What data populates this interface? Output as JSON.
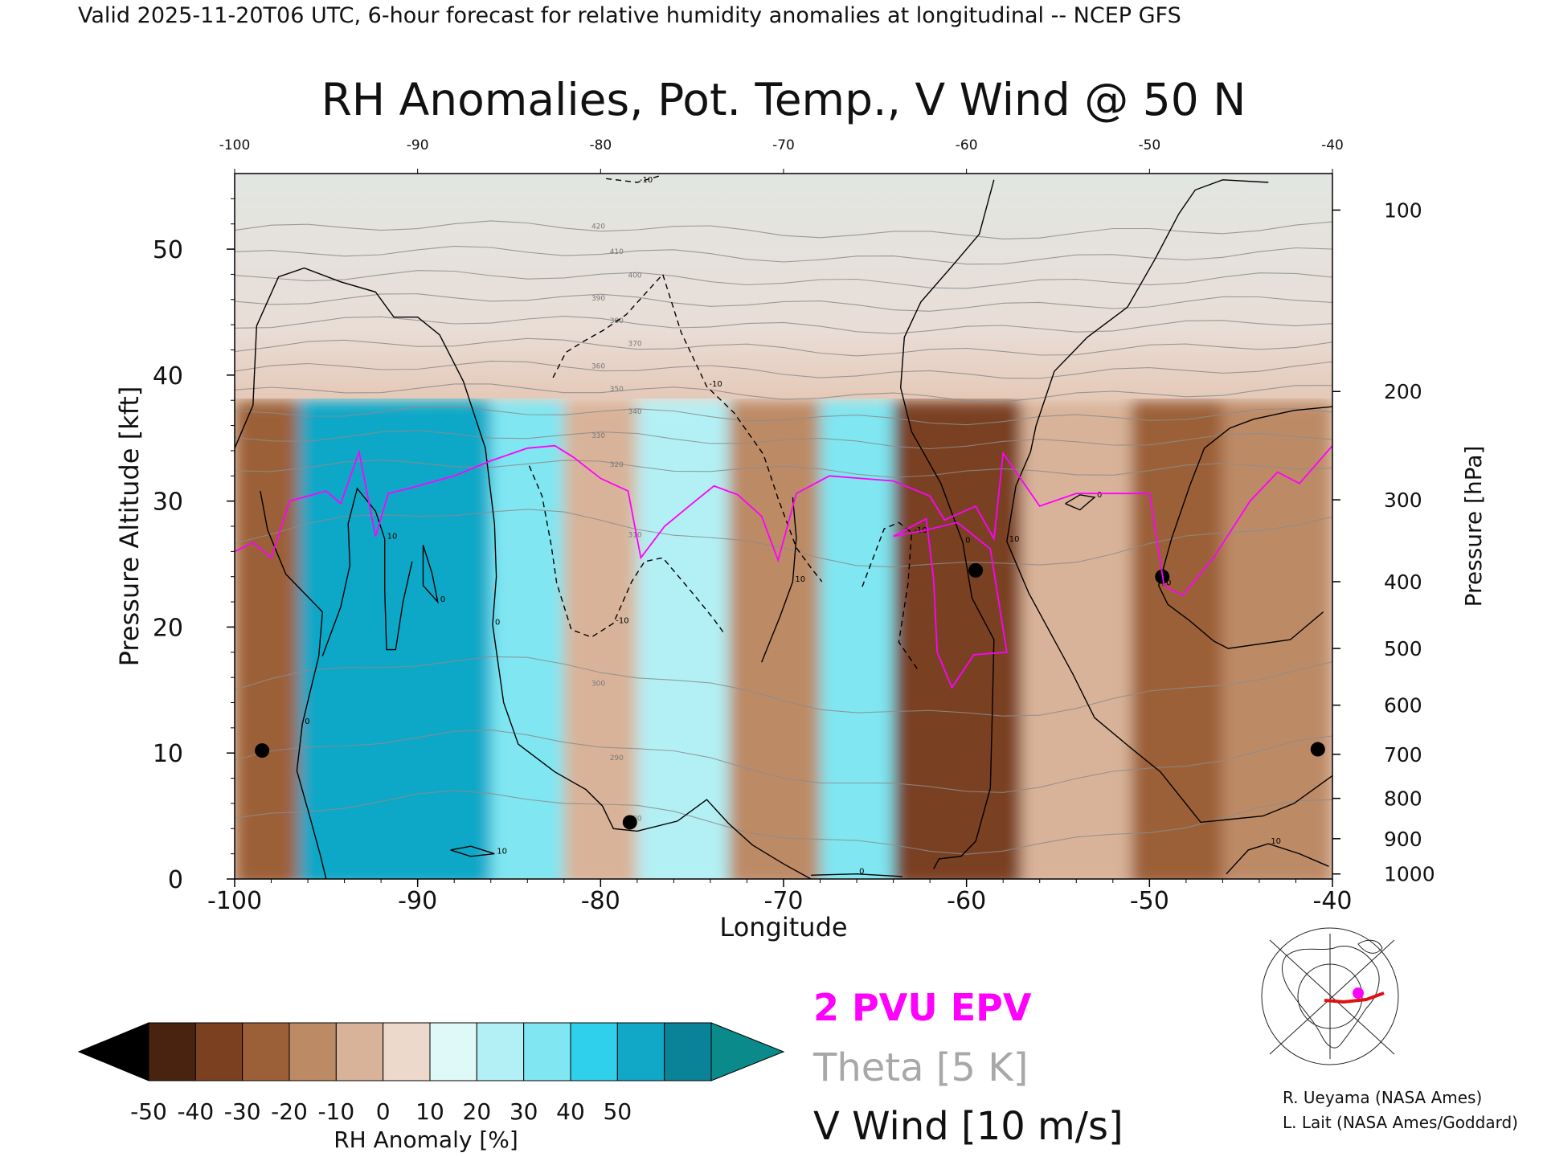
{
  "header": "Valid 2025-11-20T06 UTC, 6-hour forecast for relative humidity anomalies at longitudinal -- NCEP GFS",
  "chart_data": {
    "type": "heatmap",
    "title": "RH Anomalies, Pot. Temp., V Wind @ 50 N",
    "xlabel": "Longitude",
    "ylabel": "Pressure Altitude [kft]",
    "y2label": "Pressure [hPa]",
    "xlim": [
      -100,
      -40
    ],
    "ylim": [
      0,
      56
    ],
    "xticks": [
      "-100",
      "-90",
      "-80",
      "-70",
      "-60",
      "-50",
      "-40"
    ],
    "top_xticks": [
      "-100",
      "-90",
      "-80",
      "-70",
      "-60",
      "-50",
      "-40"
    ],
    "yticks": [
      "0",
      "10",
      "20",
      "30",
      "40",
      "50"
    ],
    "pressure_ticks": [
      {
        "label": "100",
        "alt": 53.1
      },
      {
        "label": "200",
        "alt": 38.7
      },
      {
        "label": "300",
        "alt": 30.1
      },
      {
        "label": "400",
        "alt": 23.6
      },
      {
        "label": "500",
        "alt": 18.3
      },
      {
        "label": "600",
        "alt": 13.8
      },
      {
        "label": "700",
        "alt": 9.9
      },
      {
        "label": "800",
        "alt": 6.4
      },
      {
        "label": "900",
        "alt": 3.2
      },
      {
        "label": "1000",
        "alt": 0.4
      }
    ],
    "colorbar": {
      "label": "RH Anomaly [%]",
      "ticks": [
        "-50",
        "-40",
        "-30",
        "-20",
        "-10",
        "0",
        "10",
        "20",
        "30",
        "40",
        "50"
      ],
      "colors": [
        "#4a2310",
        "#7a4020",
        "#9c6038",
        "#bd8a66",
        "#d9b399",
        "#ecd9cc",
        "#dff8f8",
        "#b3f0f5",
        "#7fe6f2",
        "#2fd0ec",
        "#11a7c7",
        "#0a8297"
      ],
      "under_color": "#000000",
      "over_color": "#0a8a8a"
    },
    "theta_labels": [
      "420",
      "410",
      "400",
      "390",
      "380",
      "370",
      "360",
      "350",
      "340",
      "330",
      "320",
      "310",
      "300",
      "290",
      "280"
    ],
    "theta_levels": [
      {
        "theta": 420,
        "alt": 51.5
      },
      {
        "theta": 410,
        "alt": 49.5
      },
      {
        "theta": 400,
        "alt": 47.6
      },
      {
        "theta": 390,
        "alt": 45.8
      },
      {
        "theta": 380,
        "alt": 44.0
      },
      {
        "theta": 370,
        "alt": 42.2
      },
      {
        "theta": 360,
        "alt": 40.4
      },
      {
        "theta": 350,
        "alt": 38.6
      },
      {
        "theta": 340,
        "alt": 36.8
      },
      {
        "theta": 330,
        "alt": 34.9
      },
      {
        "theta": 320,
        "alt": 32.6
      },
      {
        "theta": 310,
        "alt": 27.0
      },
      {
        "theta": 300,
        "alt": 15.2
      },
      {
        "theta": 290,
        "alt": 9.3
      },
      {
        "theta": 280,
        "alt": 4.5
      }
    ],
    "rh_anomaly_bands": [
      {
        "lon_from": -100,
        "lon_to": -96.5,
        "value": -35
      },
      {
        "lon_from": -96.5,
        "lon_to": -86,
        "value": 40
      },
      {
        "lon_from": -86,
        "lon_to": -82,
        "value": 20
      },
      {
        "lon_from": -82,
        "lon_to": -78,
        "value": -20
      },
      {
        "lon_from": -78,
        "lon_to": -73,
        "value": 15
      },
      {
        "lon_from": -73,
        "lon_to": -68,
        "value": -25
      },
      {
        "lon_from": -68,
        "lon_to": -64,
        "value": 25
      },
      {
        "lon_from": -64,
        "lon_to": -57,
        "value": -45
      },
      {
        "lon_from": -57,
        "lon_to": -51,
        "value": -20
      },
      {
        "lon_from": -51,
        "lon_to": -46,
        "value": -40
      },
      {
        "lon_from": -46,
        "lon_to": -40,
        "value": -30
      }
    ],
    "epv_2pvu": [
      [
        -100,
        26
      ],
      [
        -99,
        26.7
      ],
      [
        -98,
        25.5
      ],
      [
        -97,
        30.0
      ],
      [
        -95,
        30.8
      ],
      [
        -94.2,
        29.8
      ],
      [
        -93.2,
        33.9
      ],
      [
        -92.3,
        27.2
      ],
      [
        -91.6,
        30.6
      ],
      [
        -90.5,
        31.0
      ],
      [
        -88,
        32.0
      ],
      [
        -86,
        33.2
      ],
      [
        -84,
        34.2
      ],
      [
        -82.5,
        34.4
      ],
      [
        -81.5,
        33.5
      ],
      [
        -80,
        31.8
      ],
      [
        -78.5,
        30.8
      ],
      [
        -77.8,
        25.5
      ],
      [
        -76.5,
        28.0
      ],
      [
        -75,
        29.8
      ],
      [
        -73.8,
        31.2
      ],
      [
        -72.5,
        30.5
      ],
      [
        -71.2,
        28.8
      ],
      [
        -70.3,
        25.3
      ],
      [
        -69.3,
        30.6
      ],
      [
        -67.5,
        32.0
      ],
      [
        -64,
        31.6
      ],
      [
        -62,
        30.4
      ],
      [
        -61.2,
        28.5
      ],
      [
        -59.5,
        29.6
      ],
      [
        -58.5,
        27.0
      ],
      [
        -58,
        33.8
      ],
      [
        -56,
        29.6
      ],
      [
        -54,
        30.6
      ],
      [
        -50,
        30.6
      ],
      [
        -49.2,
        23.3
      ],
      [
        -48.2,
        22.5
      ],
      [
        -46.5,
        25.5
      ],
      [
        -44.5,
        30.0
      ],
      [
        -43,
        32.3
      ],
      [
        -41.8,
        31.4
      ],
      [
        -40,
        34.4
      ]
    ],
    "epv_2pvu_lower": [
      [
        -64,
        27.2
      ],
      [
        -62.2,
        28.6
      ],
      [
        -61.8,
        23.8
      ],
      [
        -61.6,
        18.0
      ],
      [
        -60.8,
        15.2
      ],
      [
        -59.6,
        17.8
      ],
      [
        -57.8,
        18.0
      ],
      [
        -58.7,
        26.2
      ],
      [
        -60.5,
        28.3
      ],
      [
        -62.5,
        27.6
      ],
      [
        -64,
        27.2
      ]
    ],
    "vwind_contours": [
      {
        "label": "0",
        "style": "solid",
        "points": [
          [
            -100,
            34.2
          ],
          [
            -99,
            37.6
          ],
          [
            -98.8,
            43.9
          ],
          [
            -97.6,
            47.8
          ],
          [
            -96.2,
            48.5
          ],
          [
            -94.2,
            47.4
          ],
          [
            -92.3,
            46.6
          ],
          [
            -91.3,
            44.6
          ],
          [
            -90,
            44.6
          ],
          [
            -88.8,
            43.2
          ],
          [
            -87.5,
            39.5
          ],
          [
            -86.3,
            34.2
          ],
          [
            -85.8,
            28.2
          ],
          [
            -85.7,
            24.0
          ],
          [
            -85.9,
            20.2
          ],
          [
            -85.3,
            14.0
          ],
          [
            -84.5,
            10.7
          ],
          [
            -82.5,
            8.5
          ],
          [
            -80.8,
            7.1
          ],
          [
            -79.9,
            5.8
          ],
          [
            -79.3,
            4.0
          ],
          [
            -78,
            3.8
          ],
          [
            -75.8,
            4.6
          ],
          [
            -74.2,
            6.3
          ],
          [
            -73,
            4.4
          ],
          [
            -71.7,
            2.7
          ],
          [
            -70,
            1.2
          ],
          [
            -68.5,
            0
          ]
        ]
      },
      {
        "label": "0",
        "style": "solid",
        "points": [
          [
            -98.6,
            30.8
          ],
          [
            -98.2,
            27.7
          ],
          [
            -97.2,
            24.2
          ],
          [
            -95.2,
            21.2
          ],
          [
            -95.4,
            17.7
          ],
          [
            -96.3,
            12.3
          ],
          [
            -96.6,
            8.6
          ],
          [
            -95.9,
            5.0
          ],
          [
            -95.3,
            1.8
          ],
          [
            -95,
            0
          ]
        ]
      },
      {
        "label": "10",
        "style": "solid",
        "points": [
          [
            -95.2,
            17.7
          ],
          [
            -94.2,
            21.6
          ],
          [
            -93.7,
            24.9
          ],
          [
            -93.8,
            28.2
          ],
          [
            -93.3,
            31.0
          ],
          [
            -92.3,
            29.2
          ],
          [
            -91.8,
            27.0
          ],
          [
            -91.8,
            23.0
          ],
          [
            -91.7,
            18.2
          ],
          [
            -91.2,
            18.2
          ],
          [
            -90.8,
            22.0
          ],
          [
            -90.3,
            25.2
          ]
        ]
      },
      {
        "label": "0",
        "style": "solid",
        "points": [
          [
            -89.7,
            26.5
          ],
          [
            -89.2,
            24.2
          ],
          [
            -88.9,
            22.0
          ],
          [
            -89.7,
            23.3
          ],
          [
            -89.7,
            26.5
          ]
        ]
      },
      {
        "label": "10",
        "style": "solid",
        "points": [
          [
            -88.2,
            2.3
          ],
          [
            -87.1,
            2.6
          ],
          [
            -85.8,
            2.0
          ],
          [
            -87.1,
            1.8
          ],
          [
            -88.2,
            2.3
          ]
        ]
      },
      {
        "label": "-10",
        "style": "dashed",
        "points": [
          [
            -83.9,
            32.8
          ],
          [
            -83.2,
            30.4
          ],
          [
            -82.7,
            26.5
          ],
          [
            -82.4,
            23.5
          ],
          [
            -81.6,
            19.8
          ],
          [
            -80.5,
            19.2
          ],
          [
            -79.3,
            20.3
          ],
          [
            -78.3,
            23.6
          ],
          [
            -77.6,
            25.2
          ],
          [
            -76.6,
            25.5
          ],
          [
            -74.8,
            22.4
          ],
          [
            -73.8,
            20.6
          ],
          [
            -73.2,
            19.4
          ]
        ]
      },
      {
        "label": "-10",
        "style": "dashed",
        "points": [
          [
            -82.6,
            39.8
          ],
          [
            -81.9,
            41.8
          ],
          [
            -80.9,
            42.7
          ],
          [
            -79.8,
            43.6
          ],
          [
            -78.6,
            44.8
          ],
          [
            -76.6,
            48.0
          ],
          [
            -75.6,
            43.4
          ],
          [
            -74.2,
            39.1
          ],
          [
            -72.7,
            37.0
          ],
          [
            -71.1,
            33.7
          ],
          [
            -70.3,
            30.2
          ],
          [
            -69.3,
            26.3
          ],
          [
            -68.5,
            24.7
          ],
          [
            -67.9,
            23.6
          ]
        ]
      },
      {
        "label": "-10",
        "style": "dashed",
        "points": [
          [
            -79.7,
            55.6
          ],
          [
            -78,
            55.3
          ],
          [
            -76.8,
            55.8
          ]
        ]
      },
      {
        "label": "-10",
        "style": "dashed",
        "points": [
          [
            -65.7,
            23.2
          ],
          [
            -64.5,
            27.8
          ],
          [
            -63.7,
            28.3
          ],
          [
            -63,
            27.5
          ],
          [
            -63.2,
            23.4
          ],
          [
            -63.7,
            18.8
          ],
          [
            -62.7,
            16.7
          ]
        ]
      },
      {
        "label": "10",
        "style": "solid",
        "points": [
          [
            -71.2,
            17.2
          ],
          [
            -70.2,
            20.8
          ],
          [
            -69.5,
            23.6
          ],
          [
            -69.3,
            27.1
          ],
          [
            -69.5,
            30.3
          ]
        ]
      },
      {
        "label": "0",
        "style": "solid",
        "points": [
          [
            -68.5,
            0.3
          ],
          [
            -66,
            0.4
          ],
          [
            -63.5,
            0.2
          ]
        ]
      },
      {
        "label": "0",
        "style": "solid",
        "points": [
          [
            -58.5,
            55.5
          ],
          [
            -59.3,
            51.2
          ],
          [
            -60.7,
            48.8
          ],
          [
            -62.5,
            45.8
          ],
          [
            -63.4,
            43.0
          ],
          [
            -63.6,
            39.0
          ],
          [
            -63.0,
            35.5
          ],
          [
            -61.4,
            31.4
          ],
          [
            -60.2,
            26.7
          ],
          [
            -59.7,
            22.3
          ],
          [
            -58.5,
            19.0
          ],
          [
            -58.6,
            12.6
          ],
          [
            -58.7,
            7.2
          ],
          [
            -59.5,
            3.0
          ],
          [
            -60.3,
            1.8
          ],
          [
            -61.5,
            1.6
          ],
          [
            -61.8,
            0.8
          ]
        ]
      },
      {
        "label": "10",
        "style": "solid",
        "points": [
          [
            -43.5,
            55.3
          ],
          [
            -46,
            55.5
          ],
          [
            -47.5,
            54.7
          ],
          [
            -48.4,
            52.8
          ],
          [
            -49.7,
            49.2
          ],
          [
            -51.2,
            45.4
          ],
          [
            -53.4,
            43.0
          ],
          [
            -55.2,
            40.3
          ],
          [
            -56.2,
            36.0
          ],
          [
            -56.5,
            33.9
          ],
          [
            -57.3,
            31.2
          ],
          [
            -57.8,
            26.8
          ],
          [
            -56.6,
            22.7
          ],
          [
            -55.4,
            19.5
          ],
          [
            -54.2,
            16.3
          ],
          [
            -53.0,
            12.8
          ],
          [
            -51.1,
            10.5
          ],
          [
            -49.4,
            8.5
          ],
          [
            -47.2,
            4.5
          ],
          [
            -43.8,
            5.0
          ],
          [
            -42.1,
            6.0
          ],
          [
            -40,
            8.2
          ]
        ]
      },
      {
        "label": "10",
        "style": "solid",
        "points": [
          [
            -40,
            37.5
          ],
          [
            -42.1,
            37.2
          ],
          [
            -44.3,
            36.5
          ],
          [
            -45.6,
            35.8
          ],
          [
            -47.0,
            34.2
          ],
          [
            -47.8,
            31.2
          ],
          [
            -48.8,
            27.0
          ],
          [
            -49.5,
            23.3
          ],
          [
            -49.0,
            21.8
          ],
          [
            -47.8,
            20.5
          ],
          [
            -46.5,
            18.9
          ],
          [
            -45.7,
            18.3
          ],
          [
            -42.3,
            19.0
          ],
          [
            -40.5,
            21.2
          ]
        ]
      },
      {
        "label": "10",
        "style": "solid",
        "points": [
          [
            -45.8,
            0.4
          ],
          [
            -44.6,
            2.3
          ],
          [
            -43.5,
            2.8
          ],
          [
            -41.8,
            2.0
          ],
          [
            -40.2,
            1.0
          ]
        ]
      },
      {
        "label": "0",
        "style": "solid",
        "points": [
          [
            -54.6,
            29.8
          ],
          [
            -53.8,
            30.5
          ],
          [
            -53,
            30.3
          ],
          [
            -53.8,
            29.3
          ],
          [
            -54.6,
            29.8
          ]
        ]
      }
    ],
    "legend": [
      "2 PVU EPV",
      "Theta [5 K]",
      "V Wind [10 m/s]"
    ],
    "legend_colors": [
      "#ff00ff",
      "#a8a8a8",
      "#000000"
    ]
  },
  "credits": [
    "R. Ueyama (NASA Ames)",
    "L. Lait (NASA Ames/Goddard)"
  ]
}
